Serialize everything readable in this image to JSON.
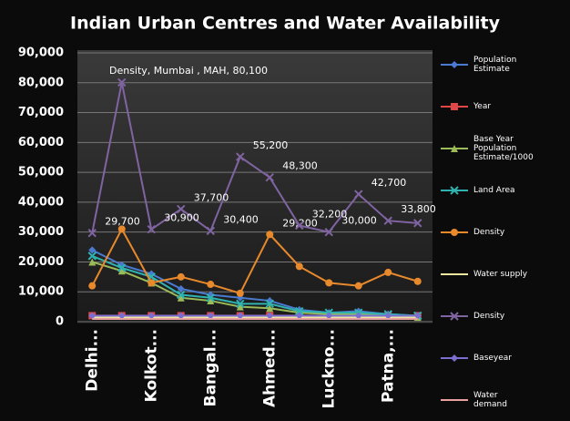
{
  "chart_data": {
    "type": "line",
    "title": "Indian Urban Centres and Water Availability",
    "annotation": "Density, Mumbai , MAH, 80,100",
    "categories": [
      "Delhi...",
      null,
      "Kolkot...",
      null,
      "Bangal...",
      null,
      "Ahmed...",
      null,
      "Luckno...",
      null,
      "Patna,...",
      null
    ],
    "ylim": [
      0,
      90000
    ],
    "yticks": [
      0,
      {
        "value": 10000,
        "label": "10,000"
      },
      {
        "value": 20000,
        "label": "20,000"
      },
      {
        "value": 30000,
        "label": "30,000"
      },
      {
        "value": 40000,
        "label": "40,000"
      },
      {
        "value": 50000,
        "label": "50,000"
      },
      {
        "value": 60000,
        "label": "60,000"
      },
      {
        "value": 70000,
        "label": "70,000"
      },
      {
        "value": 80000,
        "label": "80,000"
      },
      {
        "value": 90000,
        "label": "90,000"
      }
    ],
    "grid": true,
    "legend": "right",
    "series": [
      {
        "name": "Population Estimate",
        "color": "#4a7bd0",
        "marker": "diamond",
        "values": [
          24000,
          19000,
          16000,
          11000,
          9000,
          8000,
          7000,
          4000,
          3000,
          3500,
          2500,
          2000
        ]
      },
      {
        "name": "Year",
        "color": "#e04848",
        "marker": "square",
        "values": [
          2011,
          2011,
          2011,
          2011,
          2011,
          2011,
          2011,
          2011,
          2011,
          2011,
          2011,
          2011
        ]
      },
      {
        "name": "Base Year Population Estimate/1000",
        "color": "#9bbb59",
        "marker": "triangle",
        "values": [
          20000,
          17000,
          13000,
          8000,
          7000,
          5000,
          4500,
          3000,
          2500,
          2500,
          2000,
          1500
        ]
      },
      {
        "name": "Land Area",
        "color": "#2fb3b0",
        "marker": "x",
        "values": [
          22000,
          18000,
          15000,
          9000,
          8000,
          6000,
          6000,
          3500,
          3000,
          3000,
          2500,
          2000
        ]
      },
      {
        "name": "Density",
        "color": "#e8892c",
        "marker": "circle",
        "values": [
          12000,
          31000,
          13000,
          15000,
          12500,
          9500,
          29200,
          18500,
          13000,
          12000,
          16500,
          13500
        ],
        "value_labels": [
          null,
          null,
          null,
          null,
          null,
          null,
          "29,200",
          null,
          null,
          null,
          null,
          null
        ]
      },
      {
        "name": "Water supply",
        "color": "#f0e6a0",
        "marker": "none",
        "values": [
          1500,
          1500,
          1500,
          1500,
          1500,
          1500,
          1500,
          1500,
          1500,
          1500,
          1500,
          1500
        ]
      },
      {
        "name": "Density",
        "color": "#8064a2",
        "marker": "x",
        "values": [
          29700,
          80100,
          30900,
          37700,
          30400,
          55200,
          48300,
          32200,
          30000,
          42700,
          33800,
          33000
        ],
        "value_labels": [
          "29,700",
          null,
          "30,900",
          "37,700",
          "30,400",
          "55,200",
          "48,300",
          "32,200",
          "30,000",
          "42,700",
          "33,800",
          null
        ]
      },
      {
        "name": "Baseyear",
        "color": "#7a6fd0",
        "marker": "diamond",
        "values": [
          2001,
          2001,
          2001,
          2001,
          2001,
          2001,
          2001,
          2001,
          2001,
          2001,
          2001,
          2001
        ]
      },
      {
        "name": "Water demand",
        "color": "#e8a0a0",
        "marker": "none",
        "values": [
          900,
          900,
          900,
          900,
          900,
          900,
          900,
          900,
          900,
          900,
          900,
          900
        ]
      }
    ]
  }
}
